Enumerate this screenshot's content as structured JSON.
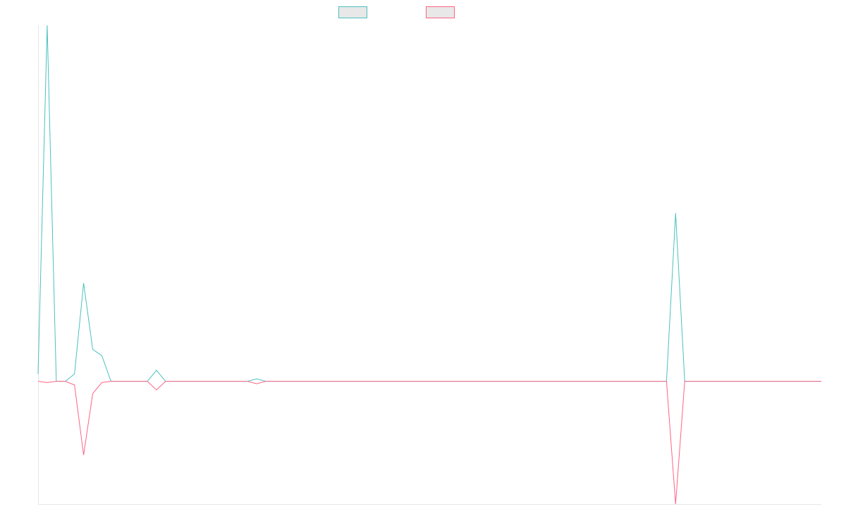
{
  "chart_data": {
    "type": "line",
    "title": "",
    "xlabel": "",
    "ylabel": "",
    "grid": false,
    "legend_position": "top-center",
    "x": [
      0,
      1,
      2,
      3,
      4,
      5,
      6,
      7,
      8,
      9,
      10,
      11,
      12,
      13,
      14,
      15,
      16,
      17,
      18,
      19,
      20,
      21,
      22,
      23,
      24,
      25,
      26,
      27,
      28,
      29,
      30,
      31,
      32,
      33,
      34,
      35,
      36,
      37,
      38,
      39,
      40,
      41,
      42,
      43,
      44,
      45,
      46,
      47,
      48,
      49,
      50,
      51,
      52,
      53,
      54,
      55,
      56,
      57,
      58,
      59,
      60,
      61,
      62,
      63,
      64,
      65,
      66,
      67,
      68,
      69,
      70,
      71,
      72,
      73,
      74,
      75,
      76,
      77,
      78,
      79,
      80,
      81,
      82,
      83,
      84,
      85,
      86
    ],
    "ylim": [
      -100,
      290
    ],
    "series": [
      {
        "color": "#4bc0c0",
        "values": [
          6,
          290,
          0,
          0,
          6,
          80,
          26,
          21,
          0,
          0,
          0,
          0,
          0,
          9,
          0,
          0,
          0,
          0,
          0,
          0,
          0,
          0,
          0,
          0,
          2,
          0,
          0,
          0,
          0,
          0,
          0,
          0,
          0,
          0,
          0,
          0,
          0,
          0,
          0,
          0,
          0,
          0,
          0,
          0,
          0,
          0,
          0,
          0,
          0,
          0,
          0,
          0,
          0,
          0,
          0,
          0,
          0,
          0,
          0,
          0,
          0,
          0,
          0,
          0,
          0,
          0,
          0,
          0,
          0,
          0,
          137,
          0,
          0,
          0,
          0,
          0,
          0,
          0,
          0,
          0,
          0,
          0,
          0,
          0,
          0,
          0,
          0
        ]
      },
      {
        "color": "#ff6384",
        "values": [
          0,
          -1,
          0,
          0,
          -3,
          -60,
          -10,
          -1,
          0,
          0,
          0,
          0,
          0,
          -7,
          0,
          0,
          0,
          0,
          0,
          0,
          0,
          0,
          0,
          0,
          -2,
          0,
          0,
          0,
          0,
          0,
          0,
          0,
          0,
          0,
          0,
          0,
          0,
          0,
          0,
          0,
          0,
          0,
          0,
          0,
          0,
          0,
          0,
          0,
          0,
          0,
          0,
          0,
          0,
          0,
          0,
          0,
          0,
          0,
          0,
          0,
          0,
          0,
          0,
          0,
          0,
          0,
          0,
          0,
          0,
          0,
          -100,
          0,
          0,
          0,
          0,
          0,
          0,
          0,
          0,
          0,
          0,
          0,
          0,
          0,
          0,
          0,
          0
        ]
      }
    ]
  }
}
